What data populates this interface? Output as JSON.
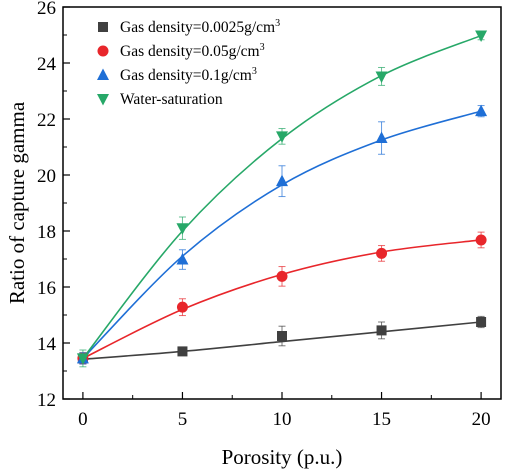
{
  "chart_data": {
    "type": "scatter",
    "title": "",
    "xlabel": "Porosity (p.u.)",
    "ylabel": "Ratio of capture gamma",
    "xlim": [
      -1,
      21
    ],
    "ylim": [
      12,
      26
    ],
    "x_ticks": [
      0,
      5,
      10,
      15,
      20
    ],
    "y_ticks": [
      12,
      14,
      16,
      18,
      20,
      22,
      24,
      26
    ],
    "grid": false,
    "legend_placement": "top-left",
    "x": [
      0,
      5,
      10,
      15,
      20
    ],
    "series": [
      {
        "name": "Gas density=0.0025g/cm",
        "name_superscript": "3",
        "marker": "square",
        "color": "#404040",
        "values": [
          13.45,
          13.7,
          14.25,
          14.45,
          14.75
        ],
        "error": [
          0.2,
          0.12,
          0.35,
          0.3,
          0.2
        ],
        "fit": [
          13.42,
          13.7,
          14.05,
          14.4,
          14.75
        ]
      },
      {
        "name": "Gas density=0.05g/cm",
        "name_superscript": "3",
        "marker": "circle",
        "color": "#e8262b",
        "values": [
          13.45,
          15.28,
          16.38,
          17.2,
          17.68
        ],
        "error": [
          0.2,
          0.3,
          0.35,
          0.28,
          0.28
        ],
        "fit": [
          13.45,
          15.2,
          16.45,
          17.25,
          17.68
        ]
      },
      {
        "name": "Gas density=0.1g/cm",
        "name_superscript": "3",
        "marker": "triangle-up",
        "color": "#1f6fd6",
        "values": [
          13.45,
          16.98,
          19.78,
          21.32,
          22.28
        ],
        "error": [
          0.2,
          0.35,
          0.55,
          0.58,
          0.2
        ],
        "fit": [
          13.45,
          17.1,
          19.65,
          21.25,
          22.28
        ]
      },
      {
        "name": "Water-saturation",
        "name_superscript": "",
        "marker": "triangle-down",
        "color": "#27a868",
        "values": [
          13.45,
          18.1,
          21.38,
          23.52,
          24.98
        ],
        "error": [
          0.3,
          0.4,
          0.28,
          0.32,
          0.15
        ],
        "fit": [
          13.45,
          18.0,
          21.3,
          23.55,
          24.98
        ]
      }
    ]
  }
}
